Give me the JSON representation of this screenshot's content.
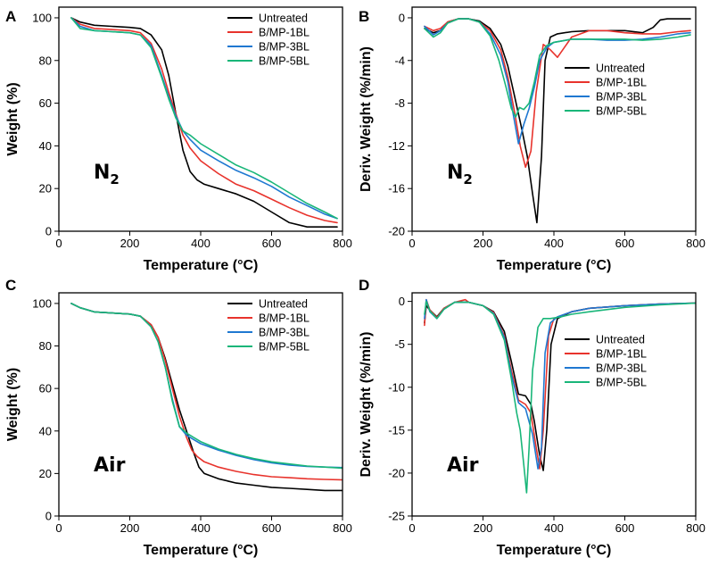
{
  "colors": {
    "Untreated": "#000000",
    "B/MP-1BL": "#e8332c",
    "B/MP-3BL": "#1f78d1",
    "B/MP-5BL": "#19b679"
  },
  "chart_data": [
    {
      "panel": "A",
      "type": "line",
      "annotation": "N2",
      "xlabel": "Temperature (°C)",
      "ylabel": "Weight (%)",
      "xlim": [
        0,
        800
      ],
      "ylim": [
        0,
        105
      ],
      "xticks": [
        0,
        200,
        400,
        600,
        800
      ],
      "yticks": [
        0,
        20,
        40,
        60,
        80,
        100
      ],
      "legend_position": "top-right",
      "series": [
        {
          "name": "Untreated",
          "x": [
            35,
            60,
            100,
            150,
            200,
            230,
            260,
            290,
            310,
            330,
            350,
            370,
            390,
            410,
            450,
            500,
            550,
            600,
            650,
            700,
            750,
            785
          ],
          "y": [
            100,
            98,
            96.5,
            96,
            95.5,
            95,
            92,
            85,
            73,
            55,
            38,
            28,
            24,
            22,
            20,
            17.5,
            14,
            9,
            4,
            2,
            2,
            2
          ]
        },
        {
          "name": "B/MP-1BL",
          "x": [
            35,
            60,
            100,
            150,
            200,
            230,
            260,
            290,
            310,
            330,
            350,
            370,
            400,
            450,
            500,
            550,
            600,
            650,
            700,
            750,
            785
          ],
          "y": [
            100,
            97,
            95,
            94.5,
            94,
            93,
            88,
            76,
            65,
            55,
            45,
            39,
            33,
            27,
            22,
            19,
            15,
            11,
            7.5,
            5,
            4
          ]
        },
        {
          "name": "B/MP-3BL",
          "x": [
            35,
            60,
            100,
            150,
            200,
            230,
            260,
            290,
            310,
            330,
            350,
            370,
            400,
            450,
            500,
            550,
            600,
            650,
            700,
            750,
            785
          ],
          "y": [
            100,
            96,
            94,
            93.5,
            93,
            92,
            87,
            73,
            63,
            54,
            47,
            43,
            38,
            33,
            28.5,
            25,
            21,
            16,
            12,
            8,
            6
          ]
        },
        {
          "name": "B/MP-5BL",
          "x": [
            35,
            60,
            100,
            150,
            200,
            230,
            260,
            290,
            310,
            330,
            350,
            370,
            400,
            450,
            500,
            550,
            600,
            650,
            700,
            750,
            785
          ],
          "y": [
            100,
            95,
            94,
            93.5,
            93,
            92,
            86,
            72,
            62,
            53,
            47,
            45,
            41,
            36,
            31,
            27.5,
            23,
            18,
            13,
            9,
            6
          ]
        }
      ]
    },
    {
      "panel": "B",
      "type": "line",
      "annotation": "N2",
      "xlabel": "Temperature (°C)",
      "ylabel": "Deriv. Weight (%/min)",
      "xlim": [
        0,
        800
      ],
      "ylim": [
        -20,
        1
      ],
      "xticks": [
        0,
        200,
        400,
        600,
        800
      ],
      "yticks": [
        -20,
        -16,
        -12,
        -8,
        -4,
        0
      ],
      "legend_position": "center-right",
      "series": [
        {
          "name": "Untreated",
          "x": [
            35,
            60,
            80,
            100,
            130,
            160,
            190,
            220,
            250,
            270,
            290,
            310,
            325,
            340,
            352,
            365,
            375,
            390,
            410,
            450,
            500,
            550,
            600,
            650,
            680,
            700,
            720,
            760,
            785
          ],
          "y": [
            -1,
            -1.4,
            -1.2,
            -0.4,
            -0.1,
            -0.1,
            -0.3,
            -1.0,
            -2.5,
            -4.5,
            -7.5,
            -10.5,
            -13,
            -16.5,
            -19.2,
            -13,
            -4,
            -1.8,
            -1.5,
            -1.3,
            -1.2,
            -1.2,
            -1.2,
            -1.4,
            -0.9,
            -0.2,
            -0.1,
            -0.1,
            -0.1
          ]
        },
        {
          "name": "B/MP-1BL",
          "x": [
            35,
            60,
            80,
            100,
            130,
            160,
            190,
            220,
            250,
            270,
            290,
            305,
            320,
            335,
            350,
            370,
            390,
            410,
            425,
            450,
            500,
            550,
            600,
            650,
            700,
            750,
            785
          ],
          "y": [
            -0.8,
            -1.2,
            -1.0,
            -0.4,
            -0.1,
            -0.1,
            -0.4,
            -1.2,
            -3,
            -5.5,
            -9,
            -12,
            -14,
            -12.5,
            -7,
            -2.5,
            -3,
            -3.7,
            -3.0,
            -1.8,
            -1.2,
            -1.2,
            -1.4,
            -1.5,
            -1.5,
            -1.3,
            -1.2
          ]
        },
        {
          "name": "B/MP-3BL",
          "x": [
            35,
            60,
            80,
            100,
            130,
            160,
            190,
            220,
            250,
            270,
            285,
            300,
            315,
            330,
            345,
            360,
            380,
            400,
            450,
            500,
            550,
            600,
            650,
            700,
            750,
            785
          ],
          "y": [
            -0.8,
            -1.6,
            -1.2,
            -0.5,
            -0.1,
            -0.1,
            -0.4,
            -1.5,
            -3.5,
            -6,
            -9,
            -11.8,
            -10,
            -8.5,
            -6.5,
            -4,
            -2.8,
            -2.3,
            -2,
            -2,
            -2.1,
            -2.1,
            -2,
            -1.8,
            -1.5,
            -1.4
          ]
        },
        {
          "name": "B/MP-5BL",
          "x": [
            35,
            60,
            80,
            100,
            130,
            160,
            190,
            220,
            245,
            265,
            280,
            292,
            303,
            315,
            330,
            345,
            360,
            380,
            400,
            450,
            500,
            550,
            600,
            650,
            700,
            750,
            785
          ],
          "y": [
            -1,
            -1.8,
            -1.4,
            -0.5,
            -0.1,
            -0.1,
            -0.4,
            -1.7,
            -4,
            -6.5,
            -8.5,
            -9.3,
            -8.4,
            -8.6,
            -8.0,
            -6,
            -3.5,
            -2.6,
            -2.3,
            -2,
            -2,
            -2,
            -2,
            -2.1,
            -2,
            -1.8,
            -1.6
          ]
        }
      ]
    },
    {
      "panel": "C",
      "type": "line",
      "annotation": "Air",
      "xlabel": "Temperature (°C)",
      "ylabel": "Weight (%)",
      "xlim": [
        0,
        800
      ],
      "ylim": [
        0,
        105
      ],
      "xticks": [
        0,
        200,
        400,
        600,
        800
      ],
      "yticks": [
        0,
        20,
        40,
        60,
        80,
        100
      ],
      "legend_position": "top-right",
      "series": [
        {
          "name": "Untreated",
          "x": [
            35,
            60,
            100,
            150,
            200,
            230,
            260,
            280,
            300,
            320,
            340,
            360,
            380,
            395,
            410,
            450,
            500,
            550,
            600,
            650,
            700,
            750,
            800
          ],
          "y": [
            100,
            98,
            96,
            95.5,
            95,
            94,
            90,
            84,
            74,
            62,
            50,
            40,
            30,
            23,
            20,
            17.5,
            15.5,
            14.5,
            13.5,
            13,
            12.5,
            12,
            12
          ]
        },
        {
          "name": "B/MP-1BL",
          "x": [
            35,
            60,
            100,
            150,
            200,
            230,
            260,
            280,
            300,
            320,
            340,
            360,
            375,
            390,
            410,
            450,
            500,
            550,
            600,
            650,
            700,
            750,
            800
          ],
          "y": [
            100,
            98,
            96,
            95.5,
            95,
            94,
            90,
            84,
            73,
            60,
            47,
            37,
            31,
            28,
            25.5,
            23,
            21,
            19.5,
            18.5,
            18,
            17.5,
            17.2,
            17
          ]
        },
        {
          "name": "B/MP-3BL",
          "x": [
            35,
            60,
            100,
            150,
            200,
            230,
            260,
            280,
            300,
            320,
            340,
            360,
            380,
            400,
            450,
            500,
            550,
            600,
            650,
            700,
            750,
            800
          ],
          "y": [
            100,
            98,
            96,
            95.5,
            95,
            94,
            89,
            82,
            70,
            55,
            42,
            38,
            36,
            34,
            31,
            28.5,
            26.5,
            25,
            24,
            23.3,
            23,
            22.8
          ]
        },
        {
          "name": "B/MP-5BL",
          "x": [
            35,
            60,
            100,
            150,
            200,
            230,
            260,
            280,
            300,
            320,
            340,
            360,
            380,
            400,
            450,
            500,
            550,
            600,
            650,
            700,
            750,
            800
          ],
          "y": [
            100,
            98,
            96,
            95.5,
            95,
            94,
            89,
            82,
            70,
            54,
            42,
            39,
            37,
            35,
            31.5,
            29,
            27,
            25.5,
            24.5,
            23.5,
            23,
            22.5
          ]
        }
      ]
    },
    {
      "panel": "D",
      "type": "line",
      "annotation": "Air",
      "xlabel": "Temperature (°C)",
      "ylabel": "Deriv. Weight (%/min)",
      "xlim": [
        0,
        800
      ],
      "ylim": [
        -25,
        1
      ],
      "xticks": [
        0,
        200,
        400,
        600,
        800
      ],
      "yticks": [
        -25,
        -20,
        -15,
        -10,
        -5,
        0
      ],
      "legend_position": "center-right",
      "series": [
        {
          "name": "Untreated",
          "x": [
            35,
            40,
            50,
            70,
            90,
            120,
            160,
            200,
            230,
            260,
            280,
            300,
            320,
            335,
            345,
            360,
            370,
            380,
            392,
            410,
            450,
            500,
            600,
            700,
            800
          ],
          "y": [
            -2.5,
            -0.5,
            -1,
            -1.8,
            -0.8,
            -0.1,
            -0.1,
            -0.5,
            -1.2,
            -3.5,
            -7,
            -10.8,
            -11,
            -12,
            -14,
            -18,
            -19.7,
            -15,
            -5,
            -2,
            -1.2,
            -0.8,
            -0.5,
            -0.3,
            -0.2
          ]
        },
        {
          "name": "B/MP-1BL",
          "x": [
            35,
            40,
            50,
            70,
            90,
            120,
            150,
            160,
            200,
            230,
            260,
            280,
            300,
            320,
            335,
            350,
            360,
            370,
            385,
            400,
            450,
            500,
            600,
            700,
            800
          ],
          "y": [
            -2.8,
            0.2,
            -1,
            -1.9,
            -0.8,
            -0.1,
            0.2,
            -0.1,
            -0.5,
            -1.3,
            -4,
            -8,
            -11.5,
            -12,
            -13,
            -17,
            -19.5,
            -15,
            -4,
            -2,
            -1.2,
            -0.8,
            -0.5,
            -0.3,
            -0.2
          ]
        },
        {
          "name": "B/MP-3BL",
          "x": [
            35,
            40,
            50,
            70,
            90,
            120,
            160,
            200,
            230,
            260,
            280,
            300,
            320,
            340,
            355,
            365,
            375,
            390,
            410,
            450,
            500,
            600,
            700,
            800
          ],
          "y": [
            -2,
            0.2,
            -1.2,
            -2,
            -0.9,
            -0.1,
            -0.1,
            -0.5,
            -1.4,
            -4.2,
            -8.5,
            -11.8,
            -12.5,
            -15.5,
            -19.5,
            -17,
            -6,
            -2.5,
            -1.8,
            -1.2,
            -0.8,
            -0.5,
            -0.3,
            -0.2
          ]
        },
        {
          "name": "B/MP-5BL",
          "x": [
            35,
            40,
            50,
            70,
            90,
            120,
            160,
            200,
            230,
            260,
            280,
            295,
            305,
            315,
            323,
            330,
            340,
            355,
            370,
            390,
            420,
            450,
            500,
            600,
            700,
            800
          ],
          "y": [
            -1.5,
            0,
            -1.1,
            -2,
            -0.9,
            -0.1,
            -0.1,
            -0.5,
            -1.5,
            -4.5,
            -9,
            -13,
            -15,
            -19,
            -22.3,
            -17,
            -8,
            -3,
            -2,
            -2,
            -1.8,
            -1.5,
            -1.2,
            -0.7,
            -0.4,
            -0.2
          ]
        }
      ]
    }
  ]
}
